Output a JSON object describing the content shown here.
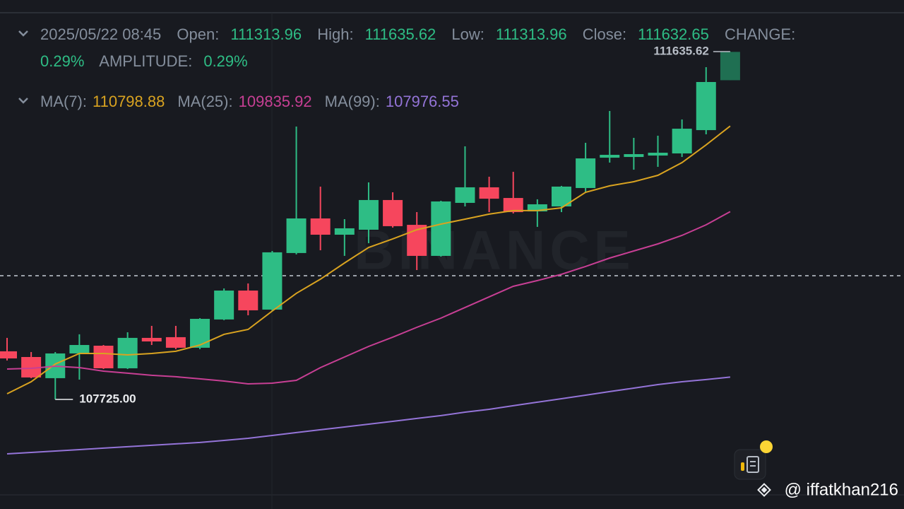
{
  "header": {
    "date": "2025/05/22 08:45",
    "labels": {
      "open": "Open:",
      "high": "High:",
      "low": "Low:",
      "close": "Close:",
      "change": "CHANGE:",
      "amplitude": "AMPLITUDE:"
    },
    "change": "0.29%",
    "amplitude": "0.29%"
  },
  "watermark": "BINANCE",
  "credit": "@ iffatkhan216",
  "chart_data": {
    "type": "candlestick",
    "categories": [
      null,
      null,
      null,
      null,
      null,
      null,
      null,
      null,
      null,
      null,
      null,
      null,
      null,
      null,
      null,
      null,
      null,
      null,
      null,
      null,
      null,
      null,
      null,
      null,
      null,
      null,
      null,
      null,
      null,
      null,
      null
    ],
    "open": [
      108266,
      108202,
      107964,
      108242,
      108329,
      108075,
      108417,
      108425,
      108306,
      108624,
      108949,
      108735,
      109371,
      109760,
      109577,
      109633,
      109967,
      109688,
      109339,
      109935,
      110110,
      109990,
      109839,
      109895,
      110102,
      110443,
      110451,
      110467,
      110491,
      110753,
      111313.96
    ],
    "high": [
      108417,
      108258,
      108258,
      108457,
      108337,
      108480,
      108552,
      108552,
      108639,
      108973,
      109029,
      109394,
      110793,
      110118,
      109752,
      110165,
      110054,
      109831,
      109959,
      110571,
      110229,
      110284,
      109975,
      110126,
      110610,
      110968,
      110666,
      110690,
      110873,
      111461,
      111635.62
    ],
    "low": [
      108163,
      107964,
      107725,
      107948,
      108067,
      108067,
      108337,
      108290,
      108290,
      108616,
      108671,
      108719,
      109355,
      109402,
      109339,
      109482,
      109657,
      109180,
      109331,
      109895,
      109831,
      109816,
      109665,
      109831,
      110054,
      110388,
      110308,
      110340,
      110451,
      110706,
      111313.96
    ],
    "close": [
      108186,
      107972,
      108242,
      108337,
      108075,
      108417,
      108377,
      108306,
      108631,
      108949,
      108727,
      109379,
      109760,
      109577,
      109649,
      109967,
      109673,
      109339,
      109951,
      110110,
      109982,
      109831,
      109919,
      110118,
      110435,
      110475,
      110483,
      110499,
      110769,
      111294,
      111632.65
    ],
    "up_color": "#2ebd85",
    "down_color": "#f6465d",
    "live_color": "#1f6f52",
    "ma": [
      {
        "name": "MA(7):",
        "color": "#d9a320",
        "values": [
          107789,
          107924,
          108123,
          108242,
          108242,
          108226,
          108242,
          108266,
          108337,
          108457,
          108512,
          108719,
          108918,
          109077,
          109259,
          109434,
          109530,
          109633,
          109696,
          109752,
          109808,
          109848,
          109848,
          109879,
          110054,
          110126,
          110173,
          110245,
          110388,
          110587,
          110798.88
        ]
      },
      {
        "name": "MA(25):",
        "color": "#c73f94",
        "values": [
          108067,
          108075,
          108099,
          108083,
          108043,
          108020,
          107996,
          107980,
          107956,
          107932,
          107900,
          107908,
          107940,
          108083,
          108202,
          108321,
          108425,
          108536,
          108639,
          108759,
          108878,
          108997,
          109061,
          109132,
          109220,
          109315,
          109394,
          109474,
          109569,
          109688,
          109835.92
        ]
      },
      {
        "name": "MA(99):",
        "color": "#9474d8",
        "values": [
          107113,
          107129,
          107145,
          107161,
          107177,
          107193,
          107209,
          107225,
          107241,
          107264,
          107288,
          107320,
          107352,
          107384,
          107415,
          107447,
          107479,
          107511,
          107543,
          107582,
          107614,
          107654,
          107694,
          107733,
          107773,
          107813,
          107852,
          107892,
          107924,
          107948,
          107976.55
        ]
      }
    ],
    "max_marker": {
      "value": 111635.62,
      "label": "111635.62"
    },
    "min_marker": {
      "value": 107725,
      "label": "107725.00"
    },
    "price_line": 109116,
    "ylim": [
      106493,
      112216
    ]
  }
}
